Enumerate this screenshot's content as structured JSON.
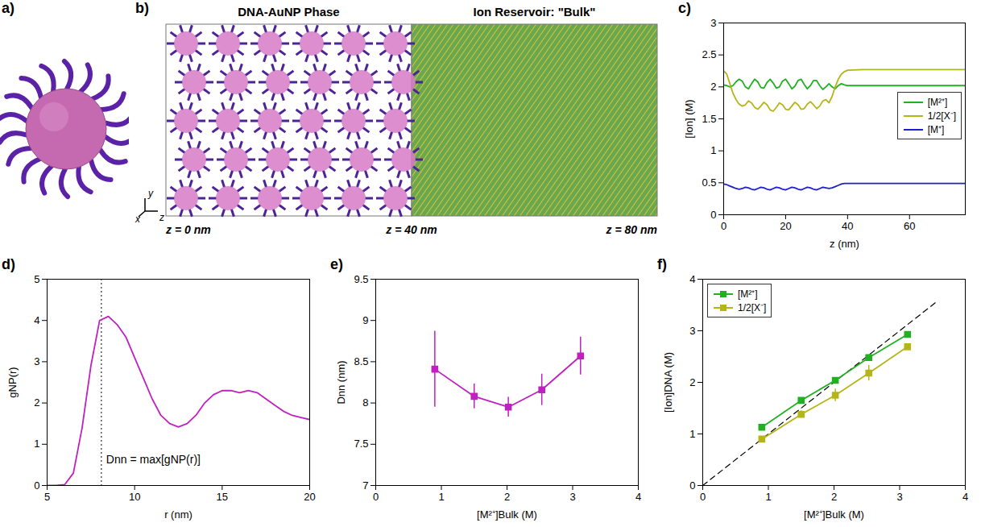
{
  "illustrations": [
    {
      "panel": "a)"
    },
    {
      "panel": "b)",
      "labels": [
        "DNA-AuNP Phase",
        "Ion Reservoir: \"Bulk\""
      ],
      "z_labels": [
        "z = 0 nm",
        "z = 40 nm",
        "z = 80 nm"
      ],
      "axes": [
        "x",
        "y",
        "z"
      ]
    }
  ],
  "chart_data": [
    {
      "panel": "c)",
      "type": "line",
      "x_label": "z (nm)",
      "y_label": "[Ion] (M)",
      "x": [
        0,
        1,
        2,
        3,
        4,
        5,
        6,
        7,
        8,
        9,
        10,
        11,
        12,
        13,
        14,
        15,
        16,
        17,
        18,
        19,
        20,
        21,
        22,
        23,
        24,
        25,
        26,
        27,
        28,
        29,
        30,
        31,
        32,
        33,
        34,
        35,
        36,
        37,
        38,
        39,
        40,
        45,
        50,
        55,
        60,
        65,
        70,
        75,
        78
      ],
      "series": [
        {
          "name": "[M²⁺]",
          "color": "#22b022",
          "values": [
            2.03,
            2.02,
            2.0,
            2.02,
            2.08,
            2.12,
            2.09,
            2.0,
            1.97,
            2.05,
            2.12,
            2.08,
            1.99,
            1.98,
            2.07,
            2.12,
            2.06,
            1.98,
            2.0,
            2.09,
            2.12,
            2.05,
            1.97,
            2.01,
            2.1,
            2.12,
            2.04,
            1.97,
            2.02,
            2.1,
            2.1,
            2.02,
            1.96,
            2.0,
            2.05,
            2.0,
            1.97,
            2.02,
            2.05,
            2.03,
            2.02,
            2.02,
            2.02,
            2.02,
            2.02,
            2.02,
            2.02,
            2.02,
            2.02
          ]
        },
        {
          "name": "1/2[X⁻]",
          "color": "#b5b518",
          "values": [
            2.25,
            2.2,
            2.05,
            1.9,
            1.8,
            1.73,
            1.7,
            1.72,
            1.78,
            1.75,
            1.68,
            1.65,
            1.7,
            1.76,
            1.72,
            1.64,
            1.62,
            1.68,
            1.75,
            1.72,
            1.65,
            1.64,
            1.7,
            1.76,
            1.72,
            1.65,
            1.66,
            1.73,
            1.77,
            1.72,
            1.66,
            1.7,
            1.78,
            1.8,
            1.75,
            1.85,
            2.0,
            2.12,
            2.2,
            2.24,
            2.26,
            2.27,
            2.27,
            2.27,
            2.27,
            2.27,
            2.27,
            2.27,
            2.27
          ]
        },
        {
          "name": "[M⁺]",
          "color": "#1f1fd0",
          "values": [
            0.48,
            0.47,
            0.45,
            0.43,
            0.41,
            0.4,
            0.41,
            0.43,
            0.42,
            0.4,
            0.39,
            0.41,
            0.43,
            0.42,
            0.4,
            0.39,
            0.41,
            0.43,
            0.42,
            0.4,
            0.39,
            0.41,
            0.43,
            0.42,
            0.4,
            0.39,
            0.41,
            0.43,
            0.42,
            0.4,
            0.39,
            0.41,
            0.43,
            0.42,
            0.41,
            0.42,
            0.44,
            0.46,
            0.48,
            0.49,
            0.49,
            0.49,
            0.49,
            0.49,
            0.49,
            0.49,
            0.49,
            0.49,
            0.49
          ]
        }
      ],
      "xlim": [
        0,
        78
      ],
      "xticks": [
        0,
        20,
        40,
        60
      ],
      "ylim": [
        0,
        3
      ],
      "yticks": [
        0,
        0.5,
        1,
        1.5,
        2,
        2.5,
        3
      ],
      "legend": "right"
    },
    {
      "panel": "d)",
      "type": "line",
      "x_label": "r (nm)",
      "y_label": "gNP(r)",
      "x": [
        5,
        5.5,
        6,
        6.5,
        7,
        7.5,
        8,
        8.5,
        9,
        9.5,
        10,
        10.5,
        11,
        11.5,
        12,
        12.5,
        13,
        13.5,
        14,
        14.5,
        15,
        15.5,
        16,
        16.5,
        17,
        17.5,
        18,
        18.5,
        19,
        19.5,
        20
      ],
      "series": [
        {
          "name": "gNP(r)",
          "color": "#c020c0",
          "values": [
            0,
            0,
            0.02,
            0.3,
            1.4,
            2.9,
            4.0,
            4.1,
            3.9,
            3.6,
            3.1,
            2.6,
            2.1,
            1.7,
            1.5,
            1.42,
            1.5,
            1.7,
            2.0,
            2.2,
            2.3,
            2.3,
            2.25,
            2.3,
            2.25,
            2.1,
            1.95,
            1.8,
            1.7,
            1.65,
            1.6
          ]
        }
      ],
      "vline": 8.1,
      "annotation": "Dnn = max[gNP(r)]",
      "xlim": [
        5,
        20
      ],
      "xticks": [
        5,
        10,
        15,
        20
      ],
      "ylim": [
        0,
        5
      ],
      "yticks": [
        0,
        1,
        2,
        3,
        4,
        5
      ]
    },
    {
      "panel": "e)",
      "type": "scatter",
      "x_label": "[M²⁺]Bulk (M)",
      "y_label": "Dnn (nm)",
      "x": [
        0.9,
        1.5,
        2.02,
        2.53,
        3.12
      ],
      "series": [
        {
          "name": "Dnn",
          "color": "#c020c0",
          "marker": "square",
          "line_style": "solid",
          "values": [
            8.41,
            8.08,
            7.95,
            8.16,
            8.57
          ],
          "errors": [
            0.46,
            0.15,
            0.12,
            0.19,
            0.23
          ]
        }
      ],
      "xlim": [
        0,
        4
      ],
      "xticks": [
        0,
        1,
        2,
        3,
        4
      ],
      "ylim": [
        7,
        9.5
      ],
      "yticks": [
        7,
        7.5,
        8,
        8.5,
        9,
        9.5
      ]
    },
    {
      "panel": "f)",
      "type": "scatter",
      "x_label": "[M²⁺]Bulk (M)",
      "y_label": "[Ion]DNA (M)",
      "x": [
        0.9,
        1.5,
        2.02,
        2.53,
        3.12
      ],
      "series": [
        {
          "name": "[M²⁺]",
          "color": "#22b022",
          "marker": "square",
          "line_style": "solid",
          "values": [
            1.13,
            1.65,
            2.04,
            2.48,
            2.93
          ],
          "errors": [
            0.03,
            0.03,
            0.03,
            0.03,
            0.05
          ]
        },
        {
          "name": "1/2[X⁻]",
          "color": "#b5b518",
          "marker": "square",
          "line_style": "solid",
          "values": [
            0.9,
            1.38,
            1.75,
            2.18,
            2.69
          ],
          "errors": [
            0.05,
            0.07,
            0.12,
            0.15,
            0.04
          ]
        }
      ],
      "reference_line": {
        "x": [
          0,
          3.55
        ],
        "y": [
          0,
          3.55
        ],
        "line_style": "dashed"
      },
      "xlim": [
        0,
        4
      ],
      "xticks": [
        0,
        1,
        2,
        3,
        4
      ],
      "ylim": [
        0,
        4
      ],
      "yticks": [
        0,
        1,
        2,
        3,
        4
      ],
      "legend": "top-left"
    }
  ]
}
